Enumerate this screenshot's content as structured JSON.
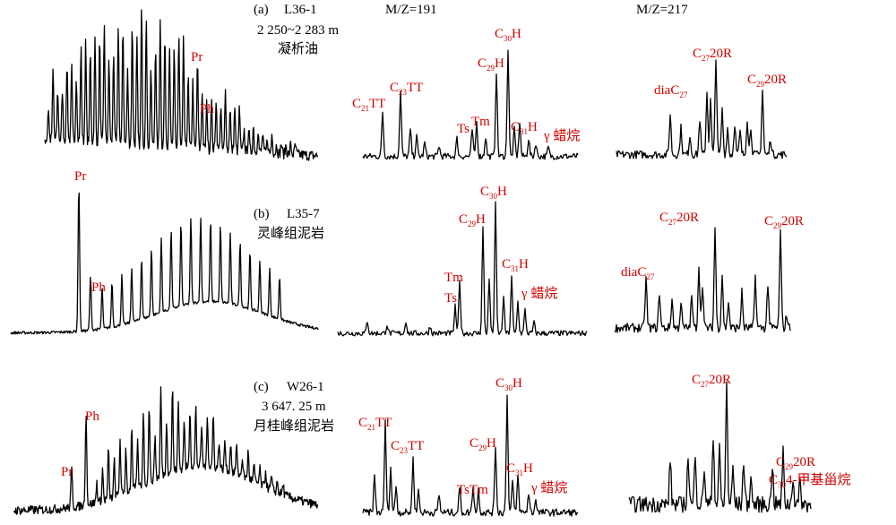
{
  "header": {
    "mz191": "M/Z=191",
    "mz217": "M/Z=217"
  },
  "colors": {
    "label": "#d40000",
    "trace": "#000000"
  },
  "panels": [
    {
      "id": "a",
      "tag": "(a)",
      "well": "L36-1",
      "depth": "2 250~2 283 m",
      "sample": "凝析油",
      "gc_labels": {
        "pr": "Pr",
        "ph": "Ph"
      },
      "m191_labels": {
        "c21tt": [
          "C",
          "21",
          "TT"
        ],
        "c23tt": [
          "C",
          "23",
          "TT"
        ],
        "ts": "Ts",
        "tm": "Tm",
        "c29h": [
          "C",
          "29",
          "H"
        ],
        "c30h": [
          "C",
          "30",
          "H"
        ],
        "c31h": [
          "C",
          "31",
          "H"
        ],
        "gammacerane": "γ 蜡烷"
      },
      "m217_labels": {
        "diac27": [
          "diaC",
          "27",
          ""
        ],
        "c27_20r": [
          "C",
          "27",
          "20R"
        ],
        "c29_20r": [
          "C",
          "29",
          "20R"
        ]
      }
    },
    {
      "id": "b",
      "tag": "(b)",
      "well": "L35-7",
      "depth": "",
      "sample": "灵峰组泥岩",
      "gc_labels": {
        "pr": "Pr",
        "ph": "Ph"
      },
      "m191_labels": {
        "ts": "Ts",
        "tm": "Tm",
        "c29h": [
          "C",
          "29",
          "H"
        ],
        "c30h": [
          "C",
          "30",
          "H"
        ],
        "c31h": [
          "C",
          "31",
          "H"
        ],
        "gammacerane": "γ 蜡烷"
      },
      "m217_labels": {
        "diac27": [
          "diaC",
          "27",
          ""
        ],
        "c27_20r": [
          "C",
          "27",
          "20R"
        ],
        "c29_20r": [
          "C",
          "29",
          "20R"
        ]
      }
    },
    {
      "id": "c",
      "tag": "(c)",
      "well": "W26-1",
      "depth": "3 647. 25 m",
      "sample": "月桂峰组泥岩",
      "gc_labels": {
        "pr": "Pr",
        "ph": "Ph"
      },
      "m191_labels": {
        "c21tt": [
          "C",
          "21",
          "TT"
        ],
        "c23tt": [
          "C",
          "23",
          "TT"
        ],
        "tstm": "TsTm",
        "c29h": [
          "C",
          "29",
          "H"
        ],
        "c30h": [
          "C",
          "30",
          "H"
        ],
        "c31h": [
          "C",
          "31",
          "H"
        ],
        "gammacerane": "γ 蜡烷"
      },
      "m217_labels": {
        "c27_20r": [
          "C",
          "27",
          "20R"
        ],
        "c29_20r": [
          "C",
          "29",
          "20R"
        ],
        "c30_sterane": [
          "C",
          "30",
          "4-甲基甾烷"
        ]
      }
    }
  ]
}
